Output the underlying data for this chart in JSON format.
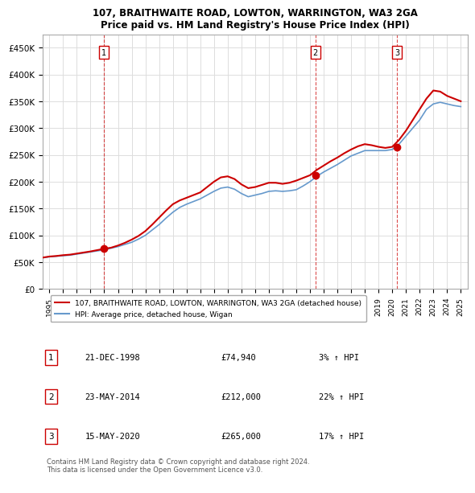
{
  "title": "107, BRAITHWAITE ROAD, LOWTON, WARRINGTON, WA3 2GA",
  "subtitle": "Price paid vs. HM Land Registry's House Price Index (HPI)",
  "legend_line1": "107, BRAITHWAITE ROAD, LOWTON, WARRINGTON, WA3 2GA (detached house)",
  "legend_line2": "HPI: Average price, detached house, Wigan",
  "footnote": "Contains HM Land Registry data © Crown copyright and database right 2024.\nThis data is licensed under the Open Government Licence v3.0.",
  "transactions": [
    {
      "num": 1,
      "date": "21-DEC-1998",
      "price": 74940,
      "pct": "3%",
      "direction": "↑",
      "year": 1998.97
    },
    {
      "num": 2,
      "date": "23-MAY-2014",
      "price": 212000,
      "pct": "22%",
      "direction": "↑",
      "year": 2014.39
    },
    {
      "num": 3,
      "date": "15-MAY-2020",
      "price": 265000,
      "pct": "17%",
      "direction": "↑",
      "year": 2020.37
    }
  ],
  "property_color": "#cc0000",
  "hpi_color": "#6699cc",
  "grid_color": "#dddddd",
  "vline_color": "#cc0000",
  "ylim": [
    0,
    475000
  ],
  "yticks": [
    0,
    50000,
    100000,
    150000,
    200000,
    250000,
    300000,
    350000,
    400000,
    450000
  ],
  "xlim_start": 1994.5,
  "xlim_end": 2025.5,
  "xticks": [
    1995,
    1996,
    1997,
    1998,
    1999,
    2000,
    2001,
    2002,
    2003,
    2004,
    2005,
    2006,
    2007,
    2008,
    2009,
    2010,
    2011,
    2012,
    2013,
    2014,
    2015,
    2016,
    2017,
    2018,
    2019,
    2020,
    2021,
    2022,
    2023,
    2024,
    2025
  ],
  "hpi_data": {
    "years": [
      1994.5,
      1995.0,
      1995.5,
      1996.0,
      1996.5,
      1997.0,
      1997.5,
      1998.0,
      1998.5,
      1999.0,
      1999.5,
      2000.0,
      2000.5,
      2001.0,
      2001.5,
      2002.0,
      2002.5,
      2003.0,
      2003.5,
      2004.0,
      2004.5,
      2005.0,
      2005.5,
      2006.0,
      2006.5,
      2007.0,
      2007.5,
      2008.0,
      2008.5,
      2009.0,
      2009.5,
      2010.0,
      2010.5,
      2011.0,
      2011.5,
      2012.0,
      2012.5,
      2013.0,
      2013.5,
      2014.0,
      2014.5,
      2015.0,
      2015.5,
      2016.0,
      2016.5,
      2017.0,
      2017.5,
      2018.0,
      2018.5,
      2019.0,
      2019.5,
      2020.0,
      2020.5,
      2021.0,
      2021.5,
      2022.0,
      2022.5,
      2023.0,
      2023.5,
      2024.0,
      2024.5,
      2025.0
    ],
    "values": [
      58000,
      60000,
      61000,
      62000,
      63000,
      65000,
      67000,
      69000,
      71000,
      73000,
      76000,
      79000,
      83000,
      87000,
      93000,
      100000,
      110000,
      120000,
      132000,
      143000,
      152000,
      158000,
      163000,
      168000,
      175000,
      182000,
      188000,
      190000,
      186000,
      178000,
      172000,
      175000,
      178000,
      182000,
      183000,
      182000,
      183000,
      185000,
      192000,
      200000,
      210000,
      218000,
      225000,
      232000,
      240000,
      248000,
      253000,
      258000,
      258000,
      258000,
      258000,
      260000,
      270000,
      285000,
      300000,
      315000,
      335000,
      345000,
      348000,
      345000,
      342000,
      340000
    ]
  },
  "property_data": {
    "years": [
      1994.5,
      1995.0,
      1995.5,
      1996.0,
      1996.5,
      1997.0,
      1997.5,
      1998.0,
      1998.5,
      1999.0,
      1999.5,
      2000.0,
      2000.5,
      2001.0,
      2001.5,
      2002.0,
      2002.5,
      2003.0,
      2003.5,
      2004.0,
      2004.5,
      2005.0,
      2005.5,
      2006.0,
      2006.5,
      2007.0,
      2007.5,
      2008.0,
      2008.5,
      2009.0,
      2009.5,
      2010.0,
      2010.5,
      2011.0,
      2011.5,
      2012.0,
      2012.5,
      2013.0,
      2013.5,
      2014.0,
      2014.5,
      2015.0,
      2015.5,
      2016.0,
      2016.5,
      2017.0,
      2017.5,
      2018.0,
      2018.5,
      2019.0,
      2019.5,
      2020.0,
      2020.5,
      2021.0,
      2021.5,
      2022.0,
      2022.5,
      2023.0,
      2023.5,
      2024.0,
      2024.5,
      2025.0
    ],
    "values": [
      58500,
      60500,
      61500,
      63000,
      64000,
      66000,
      68000,
      70000,
      72500,
      74940,
      77000,
      81000,
      86000,
      92000,
      99000,
      108000,
      120000,
      133000,
      146000,
      158000,
      165000,
      170000,
      175000,
      180000,
      190000,
      200000,
      208000,
      210000,
      205000,
      195000,
      188000,
      190000,
      194000,
      198000,
      198000,
      196000,
      198000,
      202000,
      207000,
      212000,
      222000,
      230000,
      238000,
      245000,
      253000,
      260000,
      266000,
      270000,
      268000,
      265000,
      263000,
      265000,
      278000,
      295000,
      315000,
      335000,
      355000,
      370000,
      368000,
      360000,
      355000,
      350000
    ]
  }
}
